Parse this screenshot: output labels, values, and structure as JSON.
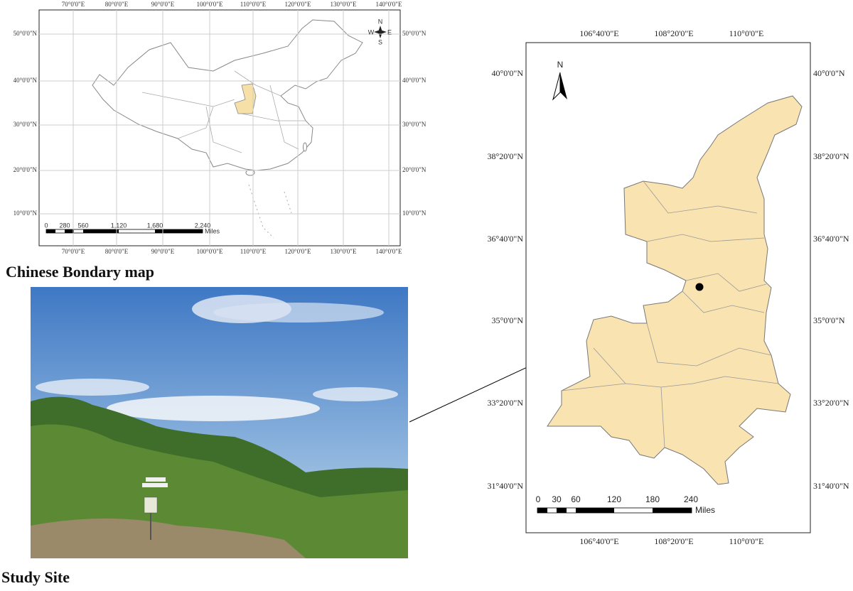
{
  "china_map": {
    "lon_labels": [
      "70°0'0\"E",
      "80°0'0\"E",
      "90°0'0\"E",
      "100°0'0\"E",
      "110°0'0\"E",
      "120°0'0\"E",
      "130°0'0\"E",
      "140°0'0\"E"
    ],
    "lat_labels": [
      "50°0'0\"N",
      "40°0'0\"N",
      "30°0'0\"N",
      "20°0'0\"N",
      "10°0'0\"N"
    ],
    "scale_labels": [
      "0",
      "280",
      "560",
      "1,120",
      "1,680",
      "2,240"
    ],
    "scale_unit": "Miles",
    "compass": [
      "N",
      "E",
      "S",
      "W"
    ],
    "caption": "Chinese Bondary map"
  },
  "photo": {
    "caption": "Study Site"
  },
  "shaanxi_map": {
    "lon_labels": [
      "106°40'0\"E",
      "108°20'0\"E",
      "110°0'0\"E"
    ],
    "lat_labels": [
      "40°0'0\"N",
      "38°20'0\"N",
      "36°40'0\"N",
      "35°0'0\"N",
      "33°20'0\"N",
      "31°40'0\"N"
    ],
    "north": "N",
    "scale_labels": [
      "0",
      "30",
      "60",
      "120",
      "180",
      "240"
    ],
    "scale_unit": "Miles"
  }
}
